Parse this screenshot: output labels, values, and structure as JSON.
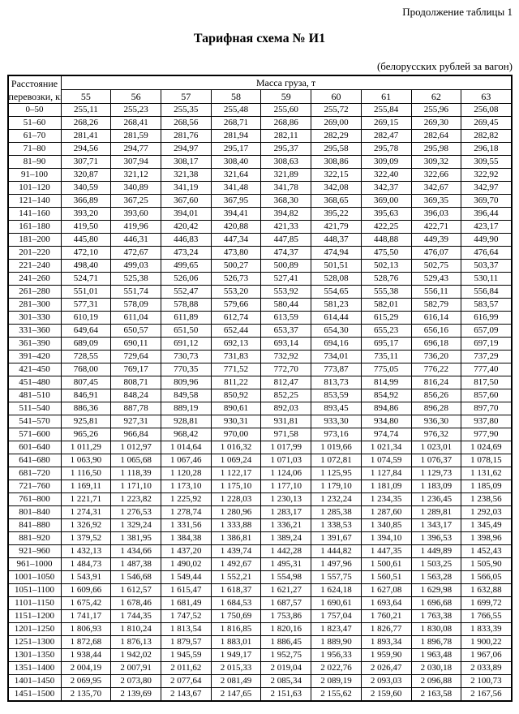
{
  "page": {
    "continuation_note": "Продолжение таблицы 1",
    "title": "Тарифная схема № И1",
    "units_note": "(белорусских рублей за вагон)"
  },
  "colors": {
    "text": "#000000",
    "background": "#ffffff",
    "table_border": "#000000"
  },
  "table": {
    "distance_header_line1": "Расстояние",
    "distance_header_line2": "перевозки, км",
    "mass_header": "Масса груза, т",
    "mass_columns": [
      "55",
      "56",
      "57",
      "58",
      "59",
      "60",
      "61",
      "62",
      "63"
    ],
    "rows": [
      {
        "distance": "0–50",
        "values": [
          "255,11",
          "255,23",
          "255,35",
          "255,48",
          "255,60",
          "255,72",
          "255,84",
          "255,96",
          "256,08"
        ]
      },
      {
        "distance": "51–60",
        "values": [
          "268,26",
          "268,41",
          "268,56",
          "268,71",
          "268,86",
          "269,00",
          "269,15",
          "269,30",
          "269,45"
        ]
      },
      {
        "distance": "61–70",
        "values": [
          "281,41",
          "281,59",
          "281,76",
          "281,94",
          "282,11",
          "282,29",
          "282,47",
          "282,64",
          "282,82"
        ]
      },
      {
        "distance": "71–80",
        "values": [
          "294,56",
          "294,77",
          "294,97",
          "295,17",
          "295,37",
          "295,58",
          "295,78",
          "295,98",
          "296,18"
        ]
      },
      {
        "distance": "81–90",
        "values": [
          "307,71",
          "307,94",
          "308,17",
          "308,40",
          "308,63",
          "308,86",
          "309,09",
          "309,32",
          "309,55"
        ]
      },
      {
        "distance": "91–100",
        "values": [
          "320,87",
          "321,12",
          "321,38",
          "321,64",
          "321,89",
          "322,15",
          "322,40",
          "322,66",
          "322,92"
        ]
      },
      {
        "distance": "101–120",
        "values": [
          "340,59",
          "340,89",
          "341,19",
          "341,48",
          "341,78",
          "342,08",
          "342,37",
          "342,67",
          "342,97"
        ]
      },
      {
        "distance": "121–140",
        "values": [
          "366,89",
          "367,25",
          "367,60",
          "367,95",
          "368,30",
          "368,65",
          "369,00",
          "369,35",
          "369,70"
        ]
      },
      {
        "distance": "141–160",
        "values": [
          "393,20",
          "393,60",
          "394,01",
          "394,41",
          "394,82",
          "395,22",
          "395,63",
          "396,03",
          "396,44"
        ]
      },
      {
        "distance": "161–180",
        "values": [
          "419,50",
          "419,96",
          "420,42",
          "420,88",
          "421,33",
          "421,79",
          "422,25",
          "422,71",
          "423,17"
        ]
      },
      {
        "distance": "181–200",
        "values": [
          "445,80",
          "446,31",
          "446,83",
          "447,34",
          "447,85",
          "448,37",
          "448,88",
          "449,39",
          "449,90"
        ]
      },
      {
        "distance": "201–220",
        "values": [
          "472,10",
          "472,67",
          "473,24",
          "473,80",
          "474,37",
          "474,94",
          "475,50",
          "476,07",
          "476,64"
        ]
      },
      {
        "distance": "221–240",
        "values": [
          "498,40",
          "499,03",
          "499,65",
          "500,27",
          "500,89",
          "501,51",
          "502,13",
          "502,75",
          "503,37"
        ]
      },
      {
        "distance": "241–260",
        "values": [
          "524,71",
          "525,38",
          "526,06",
          "526,73",
          "527,41",
          "528,08",
          "528,76",
          "529,43",
          "530,11"
        ]
      },
      {
        "distance": "261–280",
        "values": [
          "551,01",
          "551,74",
          "552,47",
          "553,20",
          "553,92",
          "554,65",
          "555,38",
          "556,11",
          "556,84"
        ]
      },
      {
        "distance": "281–300",
        "values": [
          "577,31",
          "578,09",
          "578,88",
          "579,66",
          "580,44",
          "581,23",
          "582,01",
          "582,79",
          "583,57"
        ]
      },
      {
        "distance": "301–330",
        "values": [
          "610,19",
          "611,04",
          "611,89",
          "612,74",
          "613,59",
          "614,44",
          "615,29",
          "616,14",
          "616,99"
        ]
      },
      {
        "distance": "331–360",
        "values": [
          "649,64",
          "650,57",
          "651,50",
          "652,44",
          "653,37",
          "654,30",
          "655,23",
          "656,16",
          "657,09"
        ]
      },
      {
        "distance": "361–390",
        "values": [
          "689,09",
          "690,11",
          "691,12",
          "692,13",
          "693,14",
          "694,16",
          "695,17",
          "696,18",
          "697,19"
        ]
      },
      {
        "distance": "391–420",
        "values": [
          "728,55",
          "729,64",
          "730,73",
          "731,83",
          "732,92",
          "734,01",
          "735,11",
          "736,20",
          "737,29"
        ]
      },
      {
        "distance": "421–450",
        "values": [
          "768,00",
          "769,17",
          "770,35",
          "771,52",
          "772,70",
          "773,87",
          "775,05",
          "776,22",
          "777,40"
        ]
      },
      {
        "distance": "451–480",
        "values": [
          "807,45",
          "808,71",
          "809,96",
          "811,22",
          "812,47",
          "813,73",
          "814,99",
          "816,24",
          "817,50"
        ]
      },
      {
        "distance": "481–510",
        "values": [
          "846,91",
          "848,24",
          "849,58",
          "850,92",
          "852,25",
          "853,59",
          "854,92",
          "856,26",
          "857,60"
        ]
      },
      {
        "distance": "511–540",
        "values": [
          "886,36",
          "887,78",
          "889,19",
          "890,61",
          "892,03",
          "893,45",
          "894,86",
          "896,28",
          "897,70"
        ]
      },
      {
        "distance": "541–570",
        "values": [
          "925,81",
          "927,31",
          "928,81",
          "930,31",
          "931,81",
          "933,30",
          "934,80",
          "936,30",
          "937,80"
        ]
      },
      {
        "distance": "571–600",
        "values": [
          "965,26",
          "966,84",
          "968,42",
          "970,00",
          "971,58",
          "973,16",
          "974,74",
          "976,32",
          "977,90"
        ]
      },
      {
        "distance": "601–640",
        "values": [
          "1 011,29",
          "1 012,97",
          "1 014,64",
          "1 016,32",
          "1 017,99",
          "1 019,66",
          "1 021,34",
          "1 023,01",
          "1 024,69"
        ]
      },
      {
        "distance": "641–680",
        "values": [
          "1 063,90",
          "1 065,68",
          "1 067,46",
          "1 069,24",
          "1 071,03",
          "1 072,81",
          "1 074,59",
          "1 076,37",
          "1 078,15"
        ]
      },
      {
        "distance": "681–720",
        "values": [
          "1 116,50",
          "1 118,39",
          "1 120,28",
          "1 122,17",
          "1 124,06",
          "1 125,95",
          "1 127,84",
          "1 129,73",
          "1 131,62"
        ]
      },
      {
        "distance": "721–760",
        "values": [
          "1 169,11",
          "1 171,10",
          "1 173,10",
          "1 175,10",
          "1 177,10",
          "1 179,10",
          "1 181,09",
          "1 183,09",
          "1 185,09"
        ]
      },
      {
        "distance": "761–800",
        "values": [
          "1 221,71",
          "1 223,82",
          "1 225,92",
          "1 228,03",
          "1 230,13",
          "1 232,24",
          "1 234,35",
          "1 236,45",
          "1 238,56"
        ]
      },
      {
        "distance": "801–840",
        "values": [
          "1 274,31",
          "1 276,53",
          "1 278,74",
          "1 280,96",
          "1 283,17",
          "1 285,38",
          "1 287,60",
          "1 289,81",
          "1 292,03"
        ]
      },
      {
        "distance": "841–880",
        "values": [
          "1 326,92",
          "1 329,24",
          "1 331,56",
          "1 333,88",
          "1 336,21",
          "1 338,53",
          "1 340,85",
          "1 343,17",
          "1 345,49"
        ]
      },
      {
        "distance": "881–920",
        "values": [
          "1 379,52",
          "1 381,95",
          "1 384,38",
          "1 386,81",
          "1 389,24",
          "1 391,67",
          "1 394,10",
          "1 396,53",
          "1 398,96"
        ]
      },
      {
        "distance": "921–960",
        "values": [
          "1 432,13",
          "1 434,66",
          "1 437,20",
          "1 439,74",
          "1 442,28",
          "1 444,82",
          "1 447,35",
          "1 449,89",
          "1 452,43"
        ]
      },
      {
        "distance": "961–1000",
        "values": [
          "1 484,73",
          "1 487,38",
          "1 490,02",
          "1 492,67",
          "1 495,31",
          "1 497,96",
          "1 500,61",
          "1 503,25",
          "1 505,90"
        ]
      },
      {
        "distance": "1001–1050",
        "values": [
          "1 543,91",
          "1 546,68",
          "1 549,44",
          "1 552,21",
          "1 554,98",
          "1 557,75",
          "1 560,51",
          "1 563,28",
          "1 566,05"
        ]
      },
      {
        "distance": "1051–1100",
        "values": [
          "1 609,66",
          "1 612,57",
          "1 615,47",
          "1 618,37",
          "1 621,27",
          "1 624,18",
          "1 627,08",
          "1 629,98",
          "1 632,88"
        ]
      },
      {
        "distance": "1101–1150",
        "values": [
          "1 675,42",
          "1 678,46",
          "1 681,49",
          "1 684,53",
          "1 687,57",
          "1 690,61",
          "1 693,64",
          "1 696,68",
          "1 699,72"
        ]
      },
      {
        "distance": "1151–1200",
        "values": [
          "1 741,17",
          "1 744,35",
          "1 747,52",
          "1 750,69",
          "1 753,86",
          "1 757,04",
          "1 760,21",
          "1 763,38",
          "1 766,55"
        ]
      },
      {
        "distance": "1201–1250",
        "values": [
          "1 806,93",
          "1 810,24",
          "1 813,54",
          "1 816,85",
          "1 820,16",
          "1 823,47",
          "1 826,77",
          "1 830,08",
          "1 833,39"
        ]
      },
      {
        "distance": "1251–1300",
        "values": [
          "1 872,68",
          "1 876,13",
          "1 879,57",
          "1 883,01",
          "1 886,45",
          "1 889,90",
          "1 893,34",
          "1 896,78",
          "1 900,22"
        ]
      },
      {
        "distance": "1301–1350",
        "values": [
          "1 938,44",
          "1 942,02",
          "1 945,59",
          "1 949,17",
          "1 952,75",
          "1 956,33",
          "1 959,90",
          "1 963,48",
          "1 967,06"
        ]
      },
      {
        "distance": "1351–1400",
        "values": [
          "2 004,19",
          "2 007,91",
          "2 011,62",
          "2 015,33",
          "2 019,04",
          "2 022,76",
          "2 026,47",
          "2 030,18",
          "2 033,89"
        ]
      },
      {
        "distance": "1401–1450",
        "values": [
          "2 069,95",
          "2 073,80",
          "2 077,64",
          "2 081,49",
          "2 085,34",
          "2 089,19",
          "2 093,03",
          "2 096,88",
          "2 100,73"
        ]
      },
      {
        "distance": "1451–1500",
        "values": [
          "2 135,70",
          "2 139,69",
          "2 143,67",
          "2 147,65",
          "2 151,63",
          "2 155,62",
          "2 159,60",
          "2 163,58",
          "2 167,56"
        ]
      }
    ]
  }
}
